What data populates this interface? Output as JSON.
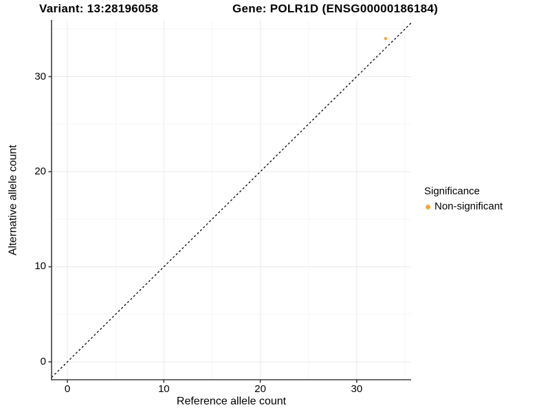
{
  "titles": {
    "variant": "Variant: 13:28196058",
    "gene": "Gene: POLR1D (ENSG00000186184)"
  },
  "axes": {
    "x": {
      "label": "Reference allele count",
      "tick_labels": [
        "0",
        "10",
        "20",
        "30"
      ]
    },
    "y": {
      "label": "Alternative allele count",
      "tick_labels": [
        "0",
        "10",
        "20",
        "30"
      ]
    }
  },
  "legend": {
    "title": "Significance",
    "items": [
      {
        "label": "Non-significant",
        "color": "#FAA43C"
      }
    ]
  },
  "colors": {
    "point": "#FAA43C",
    "grid_major": "#e9e9e9",
    "grid_minor": "#f5f5f5",
    "axis": "#3c3c3c",
    "identity_line": "#000000",
    "text": "#000000",
    "background": "#ffffff"
  },
  "chart_data": {
    "type": "scatter",
    "title": "Variant: 13:28196058 — Gene: POLR1D (ENSG00000186184)",
    "xlabel": "Reference allele count",
    "ylabel": "Alternative allele count",
    "xlim": [
      -1.64,
      35.64
    ],
    "ylim": [
      -1.88,
      35.96
    ],
    "x_ticks": [
      0,
      10,
      20,
      30
    ],
    "y_ticks": [
      0,
      10,
      20,
      30
    ],
    "x_minor_ticks": [
      5,
      15,
      25,
      35
    ],
    "y_minor_ticks": [
      5,
      15,
      25,
      35
    ],
    "grid": "major+minor",
    "legend_position": "right",
    "reference_line": {
      "kind": "identity",
      "equation": "y = x",
      "style": "dashed",
      "color": "#000000"
    },
    "series": [
      {
        "name": "Non-significant",
        "color": "#FAA43C",
        "points": [
          {
            "x": 33,
            "y": 34
          }
        ]
      }
    ]
  }
}
